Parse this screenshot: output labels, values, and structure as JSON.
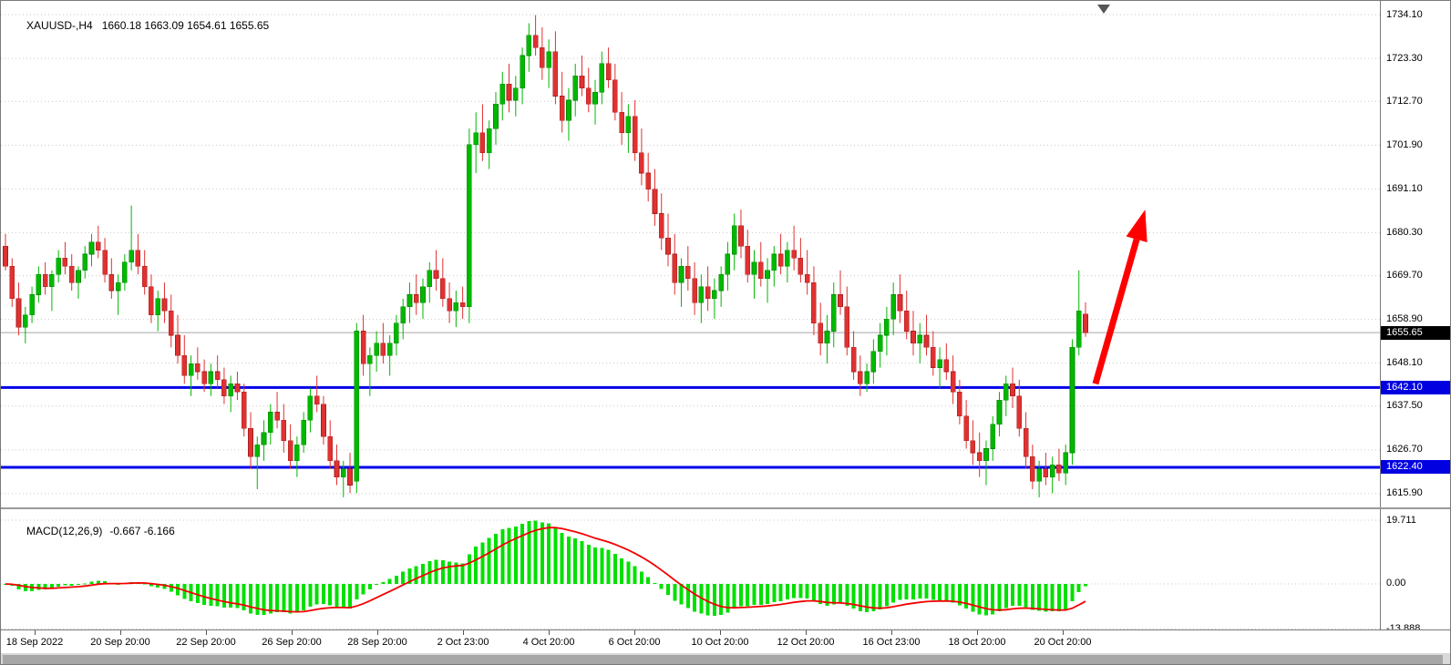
{
  "header": {
    "symbol": "XAUUSD-,H4",
    "ohlc": "1660.18 1663.09 1654.61 1655.65"
  },
  "chart_data": {
    "type": "candlestick",
    "symbol": "XAUUSD-",
    "timeframe": "H4",
    "title": "XAUUSD-,H4",
    "current_bar": {
      "open": 1660.18,
      "high": 1663.09,
      "low": 1654.61,
      "close": 1655.65
    },
    "price_axis": {
      "ticks": [
        "1734.10",
        "1723.30",
        "1712.70",
        "1701.90",
        "1691.10",
        "1680.30",
        "1669.70",
        "1658.90",
        "1648.10",
        "1637.50",
        "1626.70",
        "1615.90"
      ],
      "top_price": 1737.5,
      "bottom_price": 1612.5
    },
    "badges": {
      "current": "1655.65",
      "line1": "1642.10",
      "line2": "1622.40"
    },
    "current_price_line": 1655.65,
    "horizontal_lines": [
      {
        "price": 1642.1,
        "label": "1642.10"
      },
      {
        "price": 1622.4,
        "label": "1622.40"
      }
    ],
    "annotation": {
      "type": "arrow-up",
      "from_bar": 164.5,
      "from_price": 1643,
      "to_bar": 172,
      "to_price": 1686,
      "color": "#ff0000"
    },
    "time_axis": [
      "18 Sep 2022",
      "20 Sep 20:00",
      "22 Sep 20:00",
      "26 Sep 20:00",
      "28 Sep 20:00",
      "2 Oct 23:00",
      "4 Oct 20:00",
      "6 Oct 20:00",
      "10 Oct 20:00",
      "12 Oct 20:00",
      "16 Oct 23:00",
      "18 Oct 20:00",
      "20 Oct 20:00"
    ],
    "candles": [
      [
        1677,
        1680,
        1671,
        1672
      ],
      [
        1672,
        1674,
        1662,
        1664
      ],
      [
        1664,
        1668,
        1655,
        1657
      ],
      [
        1657,
        1662,
        1653,
        1660
      ],
      [
        1660,
        1667,
        1658,
        1665
      ],
      [
        1665,
        1672,
        1663,
        1670
      ],
      [
        1670,
        1673,
        1665,
        1667
      ],
      [
        1667,
        1671,
        1661,
        1670
      ],
      [
        1670,
        1676,
        1668,
        1674
      ],
      [
        1674,
        1678,
        1670,
        1672
      ],
      [
        1672,
        1675,
        1666,
        1668
      ],
      [
        1668,
        1672,
        1664,
        1671
      ],
      [
        1671,
        1677,
        1669,
        1675
      ],
      [
        1675,
        1680,
        1672,
        1678
      ],
      [
        1678,
        1682,
        1674,
        1676
      ],
      [
        1676,
        1679,
        1668,
        1670
      ],
      [
        1670,
        1674,
        1664,
        1666
      ],
      [
        1666,
        1670,
        1660,
        1668
      ],
      [
        1668,
        1675,
        1666,
        1673
      ],
      [
        1673,
        1687,
        1671,
        1676
      ],
      [
        1676,
        1680,
        1670,
        1672
      ],
      [
        1672,
        1676,
        1665,
        1667
      ],
      [
        1667,
        1670,
        1658,
        1660
      ],
      [
        1660,
        1666,
        1656,
        1664
      ],
      [
        1664,
        1668,
        1658,
        1661
      ],
      [
        1661,
        1665,
        1652,
        1655
      ],
      [
        1655,
        1660,
        1648,
        1650
      ],
      [
        1650,
        1655,
        1643,
        1645
      ],
      [
        1645,
        1650,
        1640,
        1648
      ],
      [
        1648,
        1652,
        1644,
        1646
      ],
      [
        1646,
        1649,
        1641,
        1643
      ],
      [
        1643,
        1648,
        1640,
        1646
      ],
      [
        1646,
        1650,
        1642,
        1644
      ],
      [
        1644,
        1647,
        1638,
        1640
      ],
      [
        1640,
        1645,
        1636,
        1643
      ],
      [
        1643,
        1646,
        1639,
        1641
      ],
      [
        1641,
        1643,
        1630,
        1632
      ],
      [
        1632,
        1636,
        1622,
        1625
      ],
      [
        1625,
        1630,
        1617,
        1628
      ],
      [
        1628,
        1634,
        1624,
        1631
      ],
      [
        1631,
        1638,
        1628,
        1636
      ],
      [
        1636,
        1641,
        1632,
        1634
      ],
      [
        1634,
        1638,
        1626,
        1629
      ],
      [
        1629,
        1633,
        1622,
        1624
      ],
      [
        1624,
        1630,
        1620,
        1628
      ],
      [
        1628,
        1636,
        1626,
        1634
      ],
      [
        1634,
        1642,
        1631,
        1640
      ],
      [
        1640,
        1645,
        1636,
        1638
      ],
      [
        1638,
        1640,
        1628,
        1630
      ],
      [
        1630,
        1634,
        1622,
        1624
      ],
      [
        1624,
        1628,
        1618,
        1620
      ],
      [
        1620,
        1624,
        1615,
        1622
      ],
      [
        1622,
        1626,
        1616,
        1618
      ],
      [
        1619,
        1658,
        1616,
        1656
      ],
      [
        1656,
        1660,
        1645,
        1648
      ],
      [
        1648,
        1652,
        1640,
        1650
      ],
      [
        1650,
        1656,
        1646,
        1653
      ],
      [
        1653,
        1658,
        1648,
        1650
      ],
      [
        1650,
        1655,
        1645,
        1653
      ],
      [
        1653,
        1660,
        1650,
        1658
      ],
      [
        1658,
        1664,
        1654,
        1662
      ],
      [
        1662,
        1668,
        1658,
        1665
      ],
      [
        1665,
        1670,
        1660,
        1663
      ],
      [
        1663,
        1669,
        1659,
        1667
      ],
      [
        1667,
        1673,
        1663,
        1671
      ],
      [
        1671,
        1676,
        1666,
        1669
      ],
      [
        1669,
        1674,
        1662,
        1664
      ],
      [
        1664,
        1668,
        1658,
        1661
      ],
      [
        1661,
        1666,
        1657,
        1663
      ],
      [
        1663,
        1667,
        1659,
        1662
      ],
      [
        1662,
        1706,
        1658,
        1702
      ],
      [
        1702,
        1710,
        1695,
        1705
      ],
      [
        1705,
        1712,
        1698,
        1700
      ],
      [
        1700,
        1708,
        1696,
        1706
      ],
      [
        1706,
        1715,
        1702,
        1712
      ],
      [
        1712,
        1720,
        1708,
        1717
      ],
      [
        1717,
        1722,
        1710,
        1713
      ],
      [
        1713,
        1719,
        1709,
        1716
      ],
      [
        1716,
        1726,
        1712,
        1724
      ],
      [
        1724,
        1732,
        1720,
        1729
      ],
      [
        1729,
        1734,
        1724,
        1726
      ],
      [
        1726,
        1731,
        1718,
        1721
      ],
      [
        1721,
        1728,
        1716,
        1725
      ],
      [
        1725,
        1730,
        1712,
        1714
      ],
      [
        1714,
        1720,
        1705,
        1708
      ],
      [
        1708,
        1716,
        1703,
        1713
      ],
      [
        1713,
        1722,
        1709,
        1719
      ],
      [
        1719,
        1724,
        1714,
        1716
      ],
      [
        1716,
        1721,
        1710,
        1712
      ],
      [
        1712,
        1718,
        1707,
        1715
      ],
      [
        1715,
        1725,
        1712,
        1722
      ],
      [
        1722,
        1726,
        1716,
        1718
      ],
      [
        1718,
        1722,
        1708,
        1710
      ],
      [
        1710,
        1715,
        1702,
        1705
      ],
      [
        1705,
        1712,
        1700,
        1709
      ],
      [
        1709,
        1713,
        1698,
        1700
      ],
      [
        1700,
        1706,
        1692,
        1695
      ],
      [
        1695,
        1700,
        1688,
        1691
      ],
      [
        1691,
        1696,
        1682,
        1685
      ],
      [
        1685,
        1690,
        1676,
        1679
      ],
      [
        1679,
        1685,
        1672,
        1675
      ],
      [
        1675,
        1680,
        1665,
        1668
      ],
      [
        1668,
        1674,
        1662,
        1672
      ],
      [
        1672,
        1677,
        1666,
        1669
      ],
      [
        1669,
        1673,
        1660,
        1663
      ],
      [
        1663,
        1670,
        1658,
        1667
      ],
      [
        1667,
        1672,
        1661,
        1664
      ],
      [
        1664,
        1669,
        1659,
        1666
      ],
      [
        1666,
        1672,
        1662,
        1670
      ],
      [
        1670,
        1678,
        1666,
        1675
      ],
      [
        1675,
        1685,
        1671,
        1682
      ],
      [
        1682,
        1686,
        1674,
        1677
      ],
      [
        1677,
        1681,
        1668,
        1670
      ],
      [
        1670,
        1676,
        1664,
        1673
      ],
      [
        1673,
        1678,
        1667,
        1669
      ],
      [
        1669,
        1674,
        1663,
        1671
      ],
      [
        1671,
        1677,
        1667,
        1675
      ],
      [
        1675,
        1680,
        1670,
        1672
      ],
      [
        1672,
        1678,
        1668,
        1676
      ],
      [
        1676,
        1682,
        1671,
        1674
      ],
      [
        1674,
        1679,
        1668,
        1670
      ],
      [
        1670,
        1676,
        1665,
        1668
      ],
      [
        1668,
        1672,
        1655,
        1658
      ],
      [
        1658,
        1663,
        1650,
        1653
      ],
      [
        1653,
        1660,
        1648,
        1656
      ],
      [
        1656,
        1668,
        1652,
        1665
      ],
      [
        1665,
        1671,
        1660,
        1662
      ],
      [
        1662,
        1667,
        1650,
        1652
      ],
      [
        1652,
        1656,
        1644,
        1646
      ],
      [
        1646,
        1650,
        1640,
        1643
      ],
      [
        1643,
        1648,
        1641,
        1646
      ],
      [
        1646,
        1654,
        1643,
        1651
      ],
      [
        1651,
        1658,
        1647,
        1655
      ],
      [
        1655,
        1662,
        1650,
        1659
      ],
      [
        1659,
        1668,
        1655,
        1665
      ],
      [
        1665,
        1670,
        1658,
        1661
      ],
      [
        1661,
        1666,
        1654,
        1656
      ],
      [
        1656,
        1661,
        1650,
        1653
      ],
      [
        1653,
        1658,
        1648,
        1655
      ],
      [
        1655,
        1660,
        1650,
        1652
      ],
      [
        1652,
        1656,
        1645,
        1647
      ],
      [
        1647,
        1652,
        1642,
        1649
      ],
      [
        1649,
        1653,
        1644,
        1646
      ],
      [
        1646,
        1650,
        1638,
        1641
      ],
      [
        1641,
        1644,
        1633,
        1635
      ],
      [
        1635,
        1639,
        1627,
        1629
      ],
      [
        1629,
        1634,
        1623,
        1626
      ],
      [
        1626,
        1631,
        1620,
        1624
      ],
      [
        1624,
        1629,
        1618,
        1627
      ],
      [
        1627,
        1635,
        1624,
        1633
      ],
      [
        1633,
        1641,
        1630,
        1639
      ],
      [
        1639,
        1645,
        1635,
        1643
      ],
      [
        1643,
        1647,
        1637,
        1640
      ],
      [
        1640,
        1644,
        1630,
        1632
      ],
      [
        1632,
        1636,
        1622,
        1625
      ],
      [
        1625,
        1628,
        1617,
        1619
      ],
      [
        1619,
        1624,
        1615,
        1622
      ],
      [
        1622,
        1626,
        1618,
        1620
      ],
      [
        1620,
        1625,
        1616,
        1623
      ],
      [
        1623,
        1627,
        1619,
        1621
      ],
      [
        1621,
        1628,
        1618,
        1626
      ],
      [
        1626,
        1654,
        1623,
        1652
      ],
      [
        1652,
        1671,
        1650,
        1661
      ],
      [
        1660.18,
        1663.09,
        1654.61,
        1655.65
      ]
    ],
    "macd": {
      "label": "MACD(12,26,9)",
      "values": "-0.667 -6.166",
      "params": [
        12,
        26,
        9
      ],
      "ticks": [
        "19.711",
        "0.00",
        "-13.888"
      ],
      "max": 23.1,
      "min": -14.1
    },
    "colors": {
      "up": "#00b800",
      "up_dark": "#008a00",
      "down": "#e03131",
      "down_dark": "#a82020",
      "grid": "#c9c9c9",
      "blue_line": "#0000e8",
      "current_line": "#a8a8a8",
      "macd_hist": "#00e000",
      "macd_signal": "#f40000",
      "arrow": "#ff0000",
      "badge_current_bg": "#000000",
      "badge_line_bg": "#0000e0"
    },
    "legend_position": "none",
    "grid": "horizontal-dotted"
  }
}
